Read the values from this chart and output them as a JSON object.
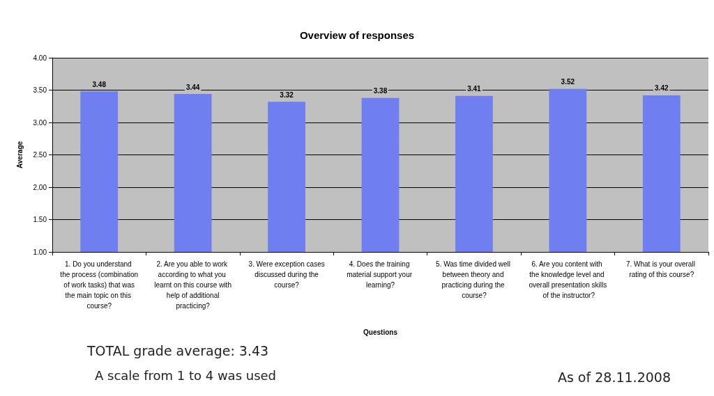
{
  "chart_data": {
    "type": "bar",
    "title": "Overview of responses",
    "xlabel": "Questions",
    "ylabel": "Average",
    "categories": [
      "1. Do you understand the process (combination of work tasks) that was the main topic on this course?",
      "2. Are you able to work according to what you learnt on this course with help of additional practicing?",
      "3. Were exception cases discussed during the course?",
      "4. Does the training material support your learning?",
      "5. Was time divided well between theory and practicing during the course?",
      "6. Are you content with the knowledge level and overall presentation skills of the instructor?",
      "7. What is your overall rating of this course?"
    ],
    "values": [
      3.48,
      3.44,
      3.32,
      3.38,
      3.41,
      3.52,
      3.42
    ],
    "color": "#6f7ff0",
    "ylim": [
      1,
      4
    ],
    "yticks": [
      {
        "value": 1,
        "label": "1.00"
      },
      {
        "value": 1.5,
        "label": "1.50"
      },
      {
        "value": 2,
        "label": "2.00"
      },
      {
        "value": 2.5,
        "label": "2.50"
      },
      {
        "value": 3,
        "label": "3.00"
      },
      {
        "value": 3.5,
        "label": "3.50"
      },
      {
        "value": 4,
        "label": "4.00"
      }
    ],
    "grid": "y",
    "data_labels": true,
    "annotations": [
      "TOTAL grade average: 3.43",
      "A scale from 1 to 4 was used",
      "As of 28.11.2008"
    ]
  }
}
